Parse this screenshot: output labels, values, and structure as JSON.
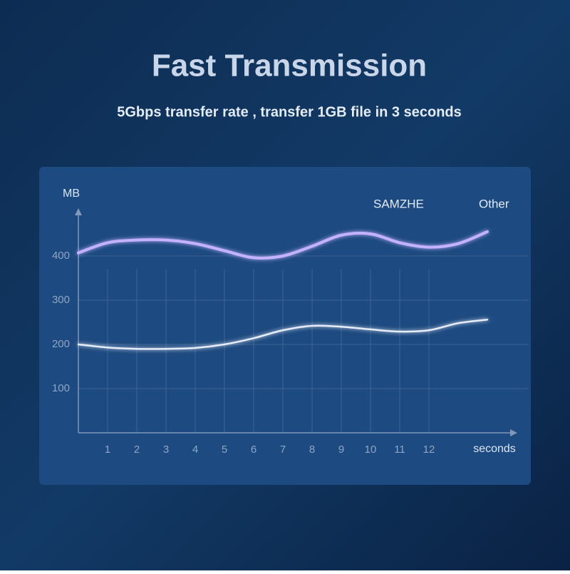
{
  "chart_data": {
    "type": "line",
    "title": "Fast Transmission",
    "subtitle": "5Gbps transfer rate , transfer 1GB file in 3 seconds",
    "y_label": "MB",
    "x_label": "seconds",
    "x": [
      0,
      1,
      2,
      3,
      4,
      5,
      6,
      7,
      8,
      9,
      10,
      11,
      12,
      13,
      14
    ],
    "series": [
      {
        "name": "SAMZHE",
        "color": "#c4b2ff",
        "values": [
          407,
          430,
          436,
          436,
          428,
          412,
          396,
          400,
          422,
          447,
          450,
          430,
          420,
          428,
          455
        ]
      },
      {
        "name": "Other",
        "color": "#d98aa0",
        "values": [
          200,
          193,
          190,
          190,
          192,
          200,
          214,
          232,
          242,
          240,
          234,
          229,
          232,
          248,
          256
        ]
      }
    ],
    "xlim": [
      0,
      15
    ],
    "xticks": [
      1,
      2,
      3,
      4,
      5,
      6,
      7,
      8,
      9,
      10,
      11,
      12
    ],
    "ylim": [
      0,
      500
    ],
    "yticks": [
      100,
      200,
      300,
      400
    ],
    "grid": true,
    "legend": "top-right"
  }
}
